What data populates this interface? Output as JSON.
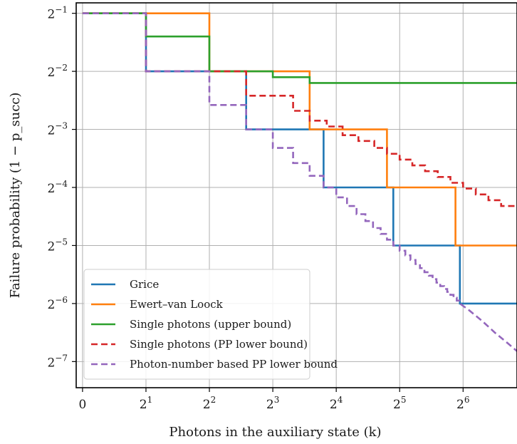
{
  "chart_data": {
    "type": "line",
    "xlabel": "Photons in the auxiliary state (k)",
    "ylabel": "Failure probability (1 − p_succ)",
    "xlim": [
      -0.1,
      6.85
    ],
    "ylim": [
      -7.45,
      -0.82
    ],
    "x_tick_labels": [
      "0",
      "2^1",
      "2^2",
      "2^3",
      "2^4",
      "2^5",
      "2^6"
    ],
    "y_tick_labels": [
      "2^-1",
      "2^-2",
      "2^-3",
      "2^-4",
      "2^-5",
      "2^-6",
      "2^-7"
    ],
    "grid": true,
    "legend_position": "bottom-left",
    "series": [
      {
        "name": "Grice",
        "color": "#1f77b4",
        "dash": "solid",
        "points": [
          [
            0,
            -1
          ],
          [
            1,
            -1
          ],
          [
            1,
            -2
          ],
          [
            2.58,
            -2
          ],
          [
            2.58,
            -3
          ],
          [
            3.8,
            -3
          ],
          [
            3.8,
            -4
          ],
          [
            4.9,
            -4
          ],
          [
            4.9,
            -5
          ],
          [
            5.95,
            -5
          ],
          [
            5.95,
            -6
          ],
          [
            6.85,
            -6
          ]
        ]
      },
      {
        "name": "Ewert–van Loock",
        "color": "#ff7f0e",
        "dash": "solid",
        "points": [
          [
            0,
            -1
          ],
          [
            2,
            -1
          ],
          [
            2,
            -2
          ],
          [
            3.58,
            -2
          ],
          [
            3.58,
            -3
          ],
          [
            4.8,
            -3
          ],
          [
            4.8,
            -4
          ],
          [
            5.88,
            -4
          ],
          [
            5.88,
            -5
          ],
          [
            6.85,
            -5
          ]
        ]
      },
      {
        "name": "Single photons (upper bound)",
        "color": "#2ca02c",
        "dash": "solid",
        "points": [
          [
            0,
            -1
          ],
          [
            1,
            -1
          ],
          [
            1,
            -1.4
          ],
          [
            2,
            -1.4
          ],
          [
            2,
            -2
          ],
          [
            3,
            -2
          ],
          [
            3,
            -2.1
          ],
          [
            3.58,
            -2.1
          ],
          [
            3.58,
            -2.2
          ],
          [
            6.85,
            -2.2
          ]
        ]
      },
      {
        "name": "Single photons (PP lower bound)",
        "color": "#d62728",
        "dash": "dashed",
        "points": [
          [
            0,
            -1
          ],
          [
            1,
            -1
          ],
          [
            1,
            -2
          ],
          [
            2.58,
            -2
          ],
          [
            2.58,
            -2.42
          ],
          [
            3.32,
            -2.42
          ],
          [
            3.32,
            -2.68
          ],
          [
            3.58,
            -2.68
          ],
          [
            3.58,
            -2.85
          ],
          [
            3.85,
            -2.85
          ],
          [
            3.85,
            -2.95
          ],
          [
            4.1,
            -2.95
          ],
          [
            4.1,
            -3.1
          ],
          [
            4.35,
            -3.1
          ],
          [
            4.35,
            -3.2
          ],
          [
            4.6,
            -3.2
          ],
          [
            4.6,
            -3.32
          ],
          [
            4.8,
            -3.32
          ],
          [
            4.8,
            -3.42
          ],
          [
            5.0,
            -3.42
          ],
          [
            5.0,
            -3.52
          ],
          [
            5.2,
            -3.52
          ],
          [
            5.2,
            -3.62
          ],
          [
            5.4,
            -3.62
          ],
          [
            5.4,
            -3.72
          ],
          [
            5.6,
            -3.72
          ],
          [
            5.6,
            -3.82
          ],
          [
            5.8,
            -3.82
          ],
          [
            5.8,
            -3.92
          ],
          [
            6.0,
            -3.92
          ],
          [
            6.0,
            -4.02
          ],
          [
            6.2,
            -4.02
          ],
          [
            6.2,
            -4.12
          ],
          [
            6.4,
            -4.12
          ],
          [
            6.4,
            -4.22
          ],
          [
            6.6,
            -4.22
          ],
          [
            6.6,
            -4.32
          ],
          [
            6.85,
            -4.32
          ]
        ]
      },
      {
        "name": "Photon-number based PP lower bound",
        "color": "#9467bd",
        "dash": "dashed",
        "points": [
          [
            0,
            -1
          ],
          [
            1,
            -1
          ],
          [
            1,
            -2
          ],
          [
            2,
            -2
          ],
          [
            2,
            -2.58
          ],
          [
            2.58,
            -2.58
          ],
          [
            2.58,
            -3
          ],
          [
            3,
            -3
          ],
          [
            3,
            -3.32
          ],
          [
            3.32,
            -3.32
          ],
          [
            3.32,
            -3.58
          ],
          [
            3.58,
            -3.58
          ],
          [
            3.58,
            -3.8
          ],
          [
            3.8,
            -3.8
          ],
          [
            3.8,
            -4
          ],
          [
            4,
            -4
          ],
          [
            4,
            -4.17
          ],
          [
            4.17,
            -4.17
          ],
          [
            4.17,
            -4.32
          ],
          [
            4.32,
            -4.32
          ],
          [
            4.32,
            -4.46
          ],
          [
            4.46,
            -4.46
          ],
          [
            4.46,
            -4.58
          ],
          [
            4.58,
            -4.58
          ],
          [
            4.58,
            -4.7
          ],
          [
            4.7,
            -4.7
          ],
          [
            4.7,
            -4.8
          ],
          [
            4.8,
            -4.8
          ],
          [
            4.8,
            -4.9
          ],
          [
            4.9,
            -4.9
          ],
          [
            4.9,
            -5
          ],
          [
            5,
            -5
          ],
          [
            5,
            -5.09
          ],
          [
            5.09,
            -5.09
          ],
          [
            5.09,
            -5.17
          ],
          [
            5.17,
            -5.17
          ],
          [
            5.17,
            -5.25
          ],
          [
            5.25,
            -5.25
          ],
          [
            5.25,
            -5.32
          ],
          [
            5.32,
            -5.32
          ],
          [
            5.32,
            -5.39
          ],
          [
            5.39,
            -5.39
          ],
          [
            5.39,
            -5.46
          ],
          [
            5.46,
            -5.46
          ],
          [
            5.46,
            -5.52
          ],
          [
            5.52,
            -5.52
          ],
          [
            5.52,
            -5.58
          ],
          [
            5.58,
            -5.58
          ],
          [
            5.58,
            -5.64
          ],
          [
            5.64,
            -5.64
          ],
          [
            5.64,
            -5.7
          ],
          [
            5.7,
            -5.7
          ],
          [
            5.7,
            -5.75
          ],
          [
            5.75,
            -5.75
          ],
          [
            5.75,
            -5.8
          ],
          [
            5.8,
            -5.8
          ],
          [
            5.8,
            -5.85
          ],
          [
            5.85,
            -5.85
          ],
          [
            5.85,
            -5.9
          ],
          [
            5.9,
            -5.9
          ],
          [
            5.9,
            -5.95
          ],
          [
            5.95,
            -5.95
          ],
          [
            5.95,
            -6
          ],
          [
            6.1,
            -6.12
          ],
          [
            6.3,
            -6.3
          ],
          [
            6.5,
            -6.5
          ],
          [
            6.7,
            -6.68
          ],
          [
            6.85,
            -6.82
          ]
        ]
      }
    ]
  }
}
